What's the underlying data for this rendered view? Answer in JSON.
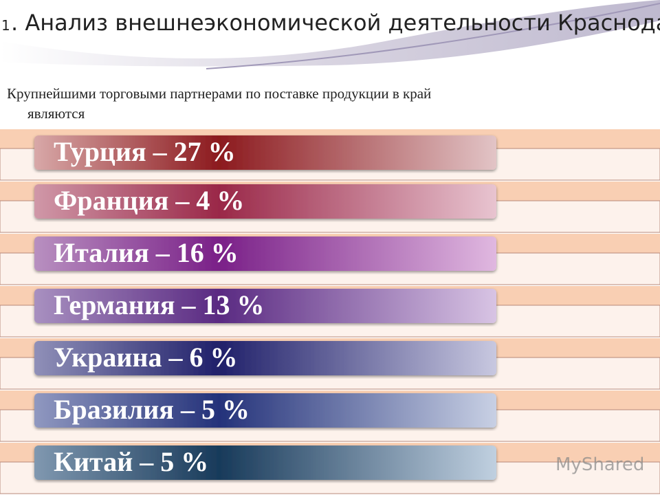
{
  "header": {
    "number": "1",
    "title": ". Анализ внешнеэкономической деятельности Краснодарского края",
    "subtitle": "Крупнейшими торговыми партнерами по поставке продукции в край являются"
  },
  "items": [
    "Турция – 27 %",
    "Франция – 4 %",
    "Италия – 16 %",
    "Германия – 13 %",
    "Украина – 6 %",
    "Бразилия – 5 %",
    "Китай – 5 %"
  ],
  "watermark": "MyShared"
}
